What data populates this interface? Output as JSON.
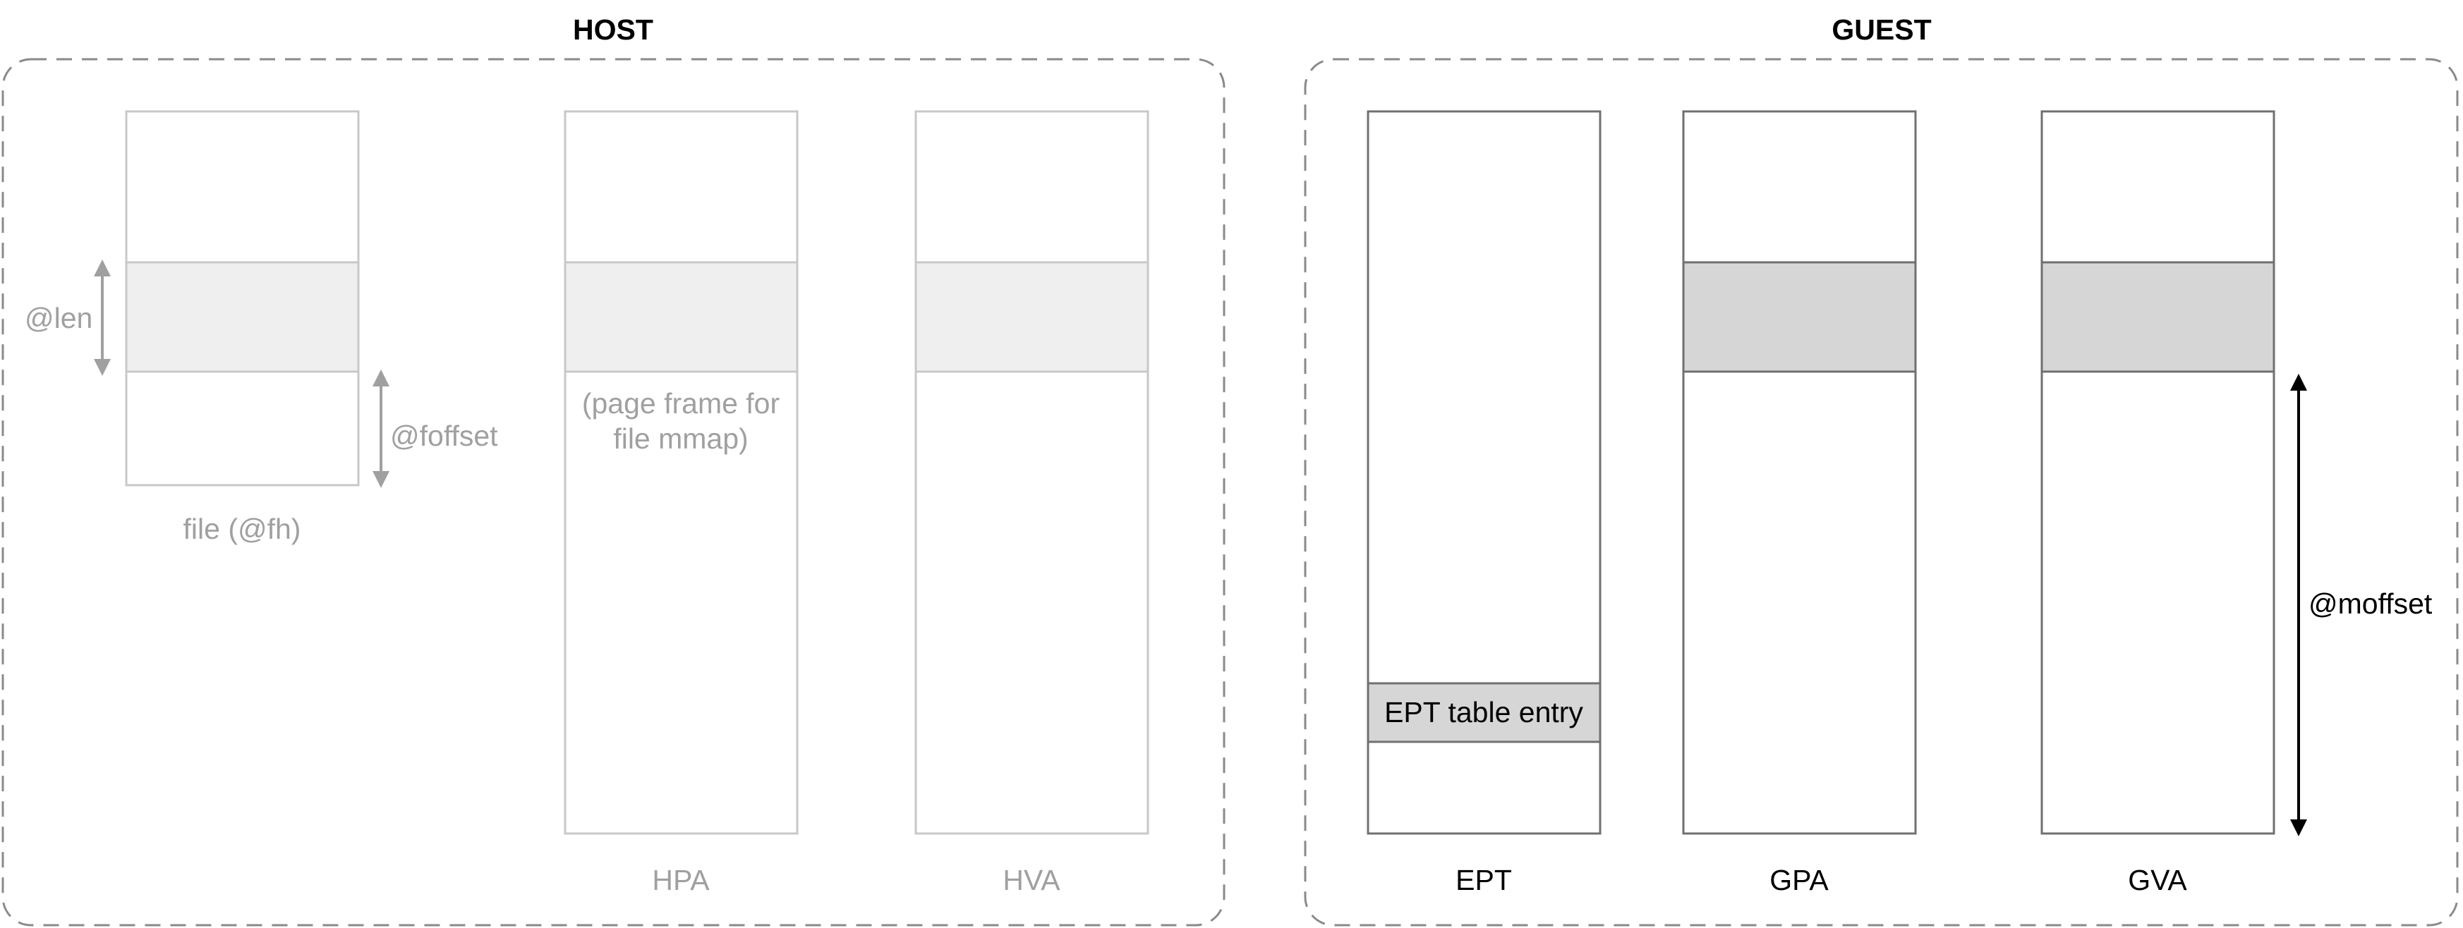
{
  "host": {
    "title": "HOST",
    "file_label": "file (@fh)",
    "len_label": "@len",
    "foffset_label": "@foffset",
    "page_frame_line1": "(page frame for",
    "page_frame_line2": "file mmap)",
    "hpa_label": "HPA",
    "hva_label": "HVA"
  },
  "guest": {
    "title": "GUEST",
    "ept_entry_label": "EPT table entry",
    "ept_label": "EPT",
    "gpa_label": "GPA",
    "gva_label": "GVA",
    "moffset_label": "@moffset"
  },
  "colors": {
    "host_stroke": "#c8c8c8",
    "host_fill": "#efefef",
    "host_text": "#a0a0a0",
    "guest_stroke": "#707070",
    "guest_fill": "#d6d6d6",
    "panel_dash": "#8a8a8a"
  }
}
